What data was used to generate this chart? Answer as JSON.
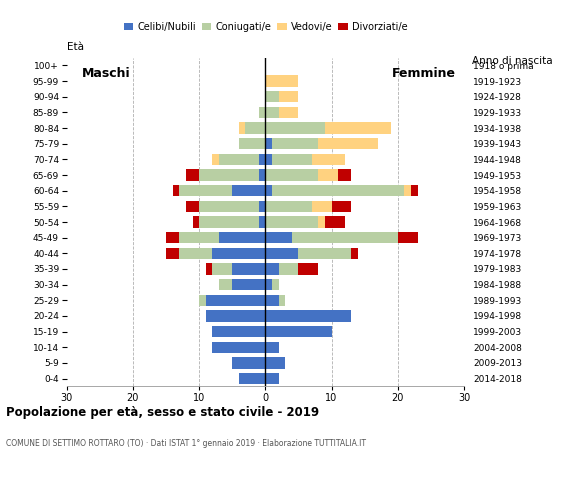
{
  "age_groups": [
    "0-4",
    "5-9",
    "10-14",
    "15-19",
    "20-24",
    "25-29",
    "30-34",
    "35-39",
    "40-44",
    "45-49",
    "50-54",
    "55-59",
    "60-64",
    "65-69",
    "70-74",
    "75-79",
    "80-84",
    "85-89",
    "90-94",
    "95-99",
    "100+"
  ],
  "birth_years": [
    "2014-2018",
    "2009-2013",
    "2004-2008",
    "1999-2003",
    "1994-1998",
    "1989-1993",
    "1984-1988",
    "1979-1983",
    "1974-1978",
    "1969-1973",
    "1964-1968",
    "1959-1963",
    "1954-1958",
    "1949-1953",
    "1944-1948",
    "1939-1943",
    "1934-1938",
    "1929-1933",
    "1924-1928",
    "1919-1923",
    "1918 o prima"
  ],
  "males": {
    "celibe": [
      4,
      5,
      8,
      8,
      9,
      9,
      5,
      5,
      8,
      7,
      1,
      1,
      5,
      1,
      1,
      0,
      0,
      0,
      0,
      0,
      0
    ],
    "coniugato": [
      0,
      0,
      0,
      0,
      0,
      1,
      2,
      3,
      5,
      6,
      9,
      9,
      8,
      9,
      6,
      4,
      3,
      1,
      0,
      0,
      0
    ],
    "vedovo": [
      0,
      0,
      0,
      0,
      0,
      0,
      0,
      0,
      0,
      0,
      0,
      0,
      0,
      0,
      1,
      0,
      1,
      0,
      0,
      0,
      0
    ],
    "divorziato": [
      0,
      0,
      0,
      0,
      0,
      0,
      0,
      1,
      2,
      2,
      1,
      2,
      1,
      2,
      0,
      0,
      0,
      0,
      0,
      0,
      0
    ]
  },
  "females": {
    "nubile": [
      2,
      3,
      2,
      10,
      13,
      2,
      1,
      2,
      5,
      4,
      0,
      0,
      1,
      0,
      1,
      1,
      0,
      0,
      0,
      0,
      0
    ],
    "coniugata": [
      0,
      0,
      0,
      0,
      0,
      1,
      1,
      3,
      8,
      16,
      8,
      7,
      20,
      8,
      6,
      7,
      9,
      2,
      2,
      0,
      0
    ],
    "vedova": [
      0,
      0,
      0,
      0,
      0,
      0,
      0,
      0,
      0,
      0,
      1,
      3,
      1,
      3,
      5,
      9,
      10,
      3,
      3,
      5,
      0
    ],
    "divorziata": [
      0,
      0,
      0,
      0,
      0,
      0,
      0,
      3,
      1,
      3,
      3,
      3,
      1,
      2,
      0,
      0,
      0,
      0,
      0,
      0,
      0
    ]
  },
  "colors": {
    "celibe": "#4472c4",
    "coniugato": "#b8cfa3",
    "vedovo": "#ffd280",
    "divorziato": "#c00000"
  },
  "legend_labels": [
    "Celibi/Nubili",
    "Coniugati/e",
    "Vedovi/e",
    "Divorziati/e"
  ],
  "title": "Popolazione per età, sesso e stato civile - 2019",
  "subtitle": "COMUNE DI SETTIMO ROTTARO (TO) · Dati ISTAT 1° gennaio 2019 · Elaborazione TUTTITALIA.IT",
  "xlim": 30,
  "bg_color": "#ffffff",
  "grid_color": "#b0b0b0"
}
